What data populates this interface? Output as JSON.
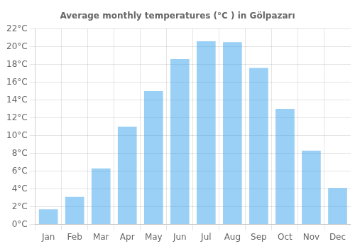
{
  "chart_data": {
    "type": "bar",
    "title": "Average monthly temperatures (°C ) in Gölpazarı",
    "categories": [
      "Jan",
      "Feb",
      "Mar",
      "Apr",
      "May",
      "Jun",
      "Jul",
      "Aug",
      "Sep",
      "Oct",
      "Nov",
      "Dec"
    ],
    "values": [
      1.7,
      3.1,
      6.3,
      11.0,
      15.0,
      18.6,
      20.6,
      20.5,
      17.6,
      13.0,
      8.3,
      4.1
    ],
    "ylim": [
      0,
      22
    ],
    "yticks": [
      {
        "value": 0,
        "label": "0°C"
      },
      {
        "value": 2,
        "label": "2°C"
      },
      {
        "value": 4,
        "label": "4°C"
      },
      {
        "value": 6,
        "label": "6°C"
      },
      {
        "value": 8,
        "label": "8°C"
      },
      {
        "value": 10,
        "label": "10°C"
      },
      {
        "value": 12,
        "label": "12°C"
      },
      {
        "value": 14,
        "label": "14°C"
      },
      {
        "value": 16,
        "label": "16°C"
      },
      {
        "value": 18,
        "label": "18°C"
      },
      {
        "value": 20,
        "label": "20°C"
      },
      {
        "value": 22,
        "label": "22°C"
      }
    ],
    "grid": true
  }
}
